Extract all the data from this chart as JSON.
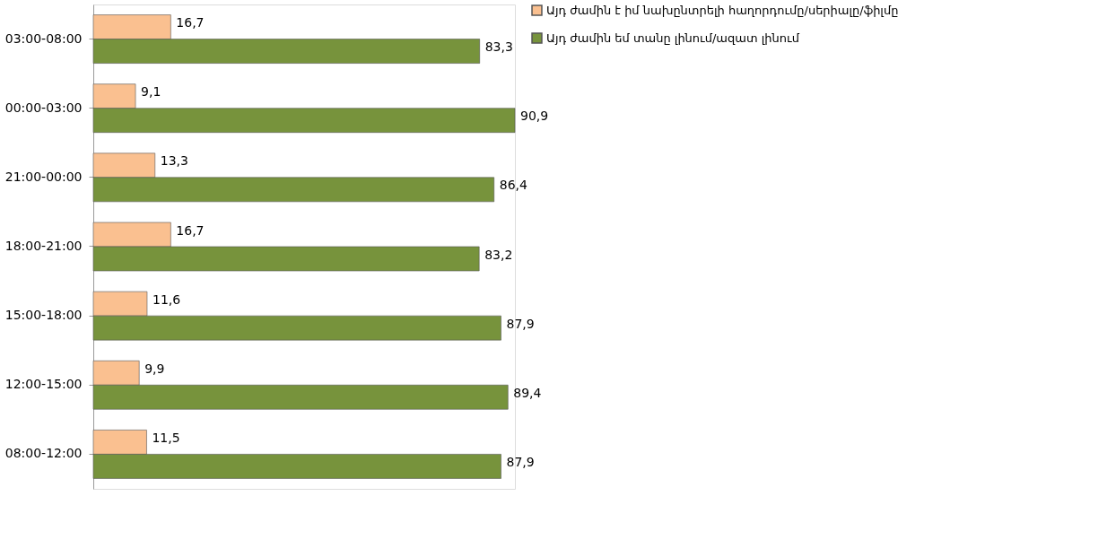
{
  "chart_data": {
    "type": "bar",
    "orientation": "horizontal",
    "categories": [
      "03:00-08:00",
      "00:00-03:00",
      "21:00-00:00",
      "18:00-21:00",
      "15:00-18:00",
      "12:00-15:00",
      "08:00-12:00"
    ],
    "series": [
      {
        "name": "Այդ ժամին է իմ նախընտրելի հաղորդումը/սերիալը/ֆիլմը",
        "color": "#fac090",
        "values": [
          16.7,
          9.1,
          13.3,
          16.7,
          11.6,
          9.9,
          11.5
        ],
        "value_labels": [
          "16,7",
          "9,1",
          "13,3",
          "16,7",
          "11,6",
          "9,9",
          "11,5"
        ]
      },
      {
        "name": "Այդ ժամին եմ տանը լինում/ազատ լինում",
        "color": "#77933c",
        "values": [
          83.3,
          90.9,
          86.4,
          83.2,
          87.9,
          89.4,
          87.9
        ],
        "value_labels": [
          "83,3",
          "90,9",
          "86,4",
          "83,2",
          "87,9",
          "89,4",
          "87,9"
        ]
      }
    ],
    "legend": "right",
    "grid": false,
    "tick_labels": "y"
  }
}
